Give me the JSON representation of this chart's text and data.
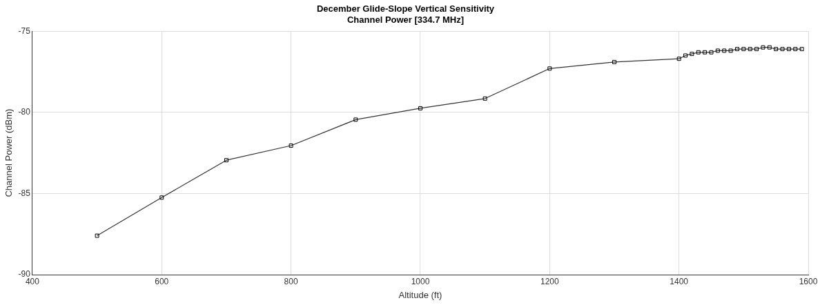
{
  "chart_data": {
    "type": "line",
    "title": [
      "December Glide-Slope Vertical Sensitivity",
      "Channel Power [334.7 MHz]"
    ],
    "xlabel": "Altitude (ft)",
    "ylabel": "Channel Power (dBm)",
    "x": [
      500,
      600,
      700,
      800,
      900,
      1000,
      1100,
      1200,
      1300,
      1400,
      1410,
      1420,
      1430,
      1440,
      1450,
      1460,
      1470,
      1480,
      1490,
      1500,
      1510,
      1520,
      1530,
      1540,
      1550,
      1560,
      1570,
      1580,
      1590
    ],
    "series": [
      {
        "color": "#333333",
        "values": [
          -87.6,
          -85.25,
          -82.95,
          -82.05,
          -80.45,
          -79.75,
          -79.15,
          -77.3,
          -76.9,
          -76.7,
          -76.5,
          -76.4,
          -76.3,
          -76.3,
          -76.3,
          -76.2,
          -76.2,
          -76.2,
          -76.1,
          -76.1,
          -76.1,
          -76.1,
          -76.0,
          -76.0,
          -76.1,
          -76.1,
          -76.1,
          -76.1,
          -76.1
        ]
      }
    ],
    "xlim": [
      400,
      1600
    ],
    "xticks": [
      400,
      600,
      800,
      1000,
      1200,
      1400,
      1600
    ],
    "ylim": [
      -90,
      -75
    ],
    "yticks": [
      -90,
      -85,
      -80,
      -75
    ],
    "grid": true,
    "legend": false,
    "marker": "square",
    "line_style": "solid"
  }
}
